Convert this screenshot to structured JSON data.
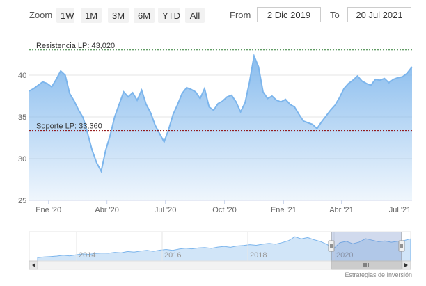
{
  "toolbar": {
    "zoom_label": "Zoom",
    "buttons": [
      "1W",
      "1M",
      "3M",
      "6M",
      "YTD",
      "All"
    ],
    "from_label": "From",
    "from_value": "2 Dic 2019",
    "to_label": "To",
    "to_value": "20 Jul 2021"
  },
  "footer": "Estrategias de Inversión",
  "colors": {
    "line": "#7cb5ec",
    "resistance": "#2e7d32",
    "support": "#8b0000"
  },
  "chart_data": {
    "type": "area",
    "title": "",
    "xlabel": "",
    "ylabel": "",
    "ylim": [
      25,
      44
    ],
    "yticks": [
      25,
      30,
      35,
      40
    ],
    "xlim": [
      "2019-12-02",
      "2021-07-20"
    ],
    "xticks": [
      {
        "label": "Ene '20",
        "date": "2020-01-01"
      },
      {
        "label": "Abr '20",
        "date": "2020-04-01"
      },
      {
        "label": "Jul '20",
        "date": "2020-07-01"
      },
      {
        "label": "Oct '20",
        "date": "2020-10-01"
      },
      {
        "label": "Ene '21",
        "date": "2021-01-01"
      },
      {
        "label": "Abr '21",
        "date": "2021-04-01"
      },
      {
        "label": "Jul '21",
        "date": "2021-07-01"
      }
    ],
    "series": [
      {
        "name": "",
        "data": [
          [
            "2019-12-02",
            38.1
          ],
          [
            "2019-12-09",
            38.4
          ],
          [
            "2019-12-16",
            38.8
          ],
          [
            "2019-12-23",
            39.2
          ],
          [
            "2019-12-30",
            39.0
          ],
          [
            "2020-01-06",
            38.6
          ],
          [
            "2020-01-13",
            39.5
          ],
          [
            "2020-01-20",
            40.5
          ],
          [
            "2020-01-27",
            40.0
          ],
          [
            "2020-02-03",
            37.8
          ],
          [
            "2020-02-10",
            36.9
          ],
          [
            "2020-02-17",
            35.8
          ],
          [
            "2020-02-24",
            34.9
          ],
          [
            "2020-03-02",
            33.0
          ],
          [
            "2020-03-09",
            31.0
          ],
          [
            "2020-03-16",
            29.5
          ],
          [
            "2020-03-23",
            28.5
          ],
          [
            "2020-03-30",
            31.0
          ],
          [
            "2020-04-06",
            32.8
          ],
          [
            "2020-04-13",
            35.0
          ],
          [
            "2020-04-20",
            36.5
          ],
          [
            "2020-04-27",
            38.0
          ],
          [
            "2020-05-04",
            37.4
          ],
          [
            "2020-05-11",
            37.9
          ],
          [
            "2020-05-18",
            37.0
          ],
          [
            "2020-05-25",
            38.2
          ],
          [
            "2020-06-01",
            36.5
          ],
          [
            "2020-06-08",
            35.5
          ],
          [
            "2020-06-15",
            34.0
          ],
          [
            "2020-06-22",
            33.0
          ],
          [
            "2020-06-29",
            32.0
          ],
          [
            "2020-07-06",
            33.5
          ],
          [
            "2020-07-13",
            35.3
          ],
          [
            "2020-07-20",
            36.5
          ],
          [
            "2020-07-27",
            37.8
          ],
          [
            "2020-08-03",
            38.5
          ],
          [
            "2020-08-10",
            38.3
          ],
          [
            "2020-08-17",
            38.0
          ],
          [
            "2020-08-24",
            37.2
          ],
          [
            "2020-08-31",
            38.4
          ],
          [
            "2020-09-07",
            36.2
          ],
          [
            "2020-09-14",
            35.8
          ],
          [
            "2020-09-21",
            36.6
          ],
          [
            "2020-09-28",
            36.9
          ],
          [
            "2020-10-05",
            37.4
          ],
          [
            "2020-10-12",
            37.6
          ],
          [
            "2020-10-19",
            36.8
          ],
          [
            "2020-10-26",
            35.6
          ],
          [
            "2020-11-02",
            36.7
          ],
          [
            "2020-11-09",
            39.2
          ],
          [
            "2020-11-16",
            42.3
          ],
          [
            "2020-11-23",
            41.0
          ],
          [
            "2020-11-30",
            38.0
          ],
          [
            "2020-12-07",
            37.2
          ],
          [
            "2020-12-14",
            37.5
          ],
          [
            "2020-12-21",
            37.0
          ],
          [
            "2020-12-28",
            36.8
          ],
          [
            "2021-01-04",
            37.1
          ],
          [
            "2021-01-11",
            36.5
          ],
          [
            "2021-01-18",
            36.2
          ],
          [
            "2021-01-25",
            35.3
          ],
          [
            "2021-02-01",
            34.5
          ],
          [
            "2021-02-08",
            34.3
          ],
          [
            "2021-02-15",
            34.1
          ],
          [
            "2021-02-22",
            33.6
          ],
          [
            "2021-03-01",
            34.4
          ],
          [
            "2021-03-08",
            35.1
          ],
          [
            "2021-03-15",
            35.8
          ],
          [
            "2021-03-22",
            36.4
          ],
          [
            "2021-03-29",
            37.3
          ],
          [
            "2021-04-05",
            38.4
          ],
          [
            "2021-04-12",
            39.0
          ],
          [
            "2021-04-19",
            39.4
          ],
          [
            "2021-04-26",
            39.9
          ],
          [
            "2021-05-03",
            39.3
          ],
          [
            "2021-05-10",
            39.0
          ],
          [
            "2021-05-17",
            38.8
          ],
          [
            "2021-05-24",
            39.5
          ],
          [
            "2021-05-31",
            39.4
          ],
          [
            "2021-06-07",
            39.6
          ],
          [
            "2021-06-14",
            39.1
          ],
          [
            "2021-06-21",
            39.5
          ],
          [
            "2021-06-28",
            39.7
          ],
          [
            "2021-07-05",
            39.8
          ],
          [
            "2021-07-12",
            40.2
          ],
          [
            "2021-07-20",
            41.0
          ]
        ]
      }
    ],
    "annotations": [
      {
        "label": "Resistencia LP: 43,020",
        "value": 43.02,
        "style": "dashed",
        "color": "#2e7d32"
      },
      {
        "label": "Soporte LP: 33,360",
        "value": 33.36,
        "style": "dashed",
        "color": "#8b0000"
      }
    ],
    "navigator": {
      "ticks": [
        "2014",
        "2016",
        "2018",
        "2020"
      ],
      "data": [
        26.5,
        26.8,
        27.0,
        27.2,
        27.6,
        27.3,
        27.8,
        28.2,
        28.0,
        28.4,
        28.6,
        28.5,
        28.9,
        28.7,
        29.3,
        29.0,
        29.5,
        29.8,
        29.4,
        29.9,
        30.2,
        29.8,
        30.4,
        30.8,
        30.5,
        30.9,
        31.1,
        30.7,
        31.3,
        31.6,
        31.2,
        31.8,
        32.0,
        32.4,
        32.1,
        32.6,
        33.0,
        32.6,
        33.3,
        34.2,
        36.0,
        35.0,
        35.6,
        34.6,
        33.8,
        32.5,
        30.5,
        33.3,
        33.9,
        32.8,
        33.6,
        35.1,
        34.4,
        33.7,
        34.1,
        33.5,
        33.9,
        34.3,
        35.0
      ]
    }
  }
}
